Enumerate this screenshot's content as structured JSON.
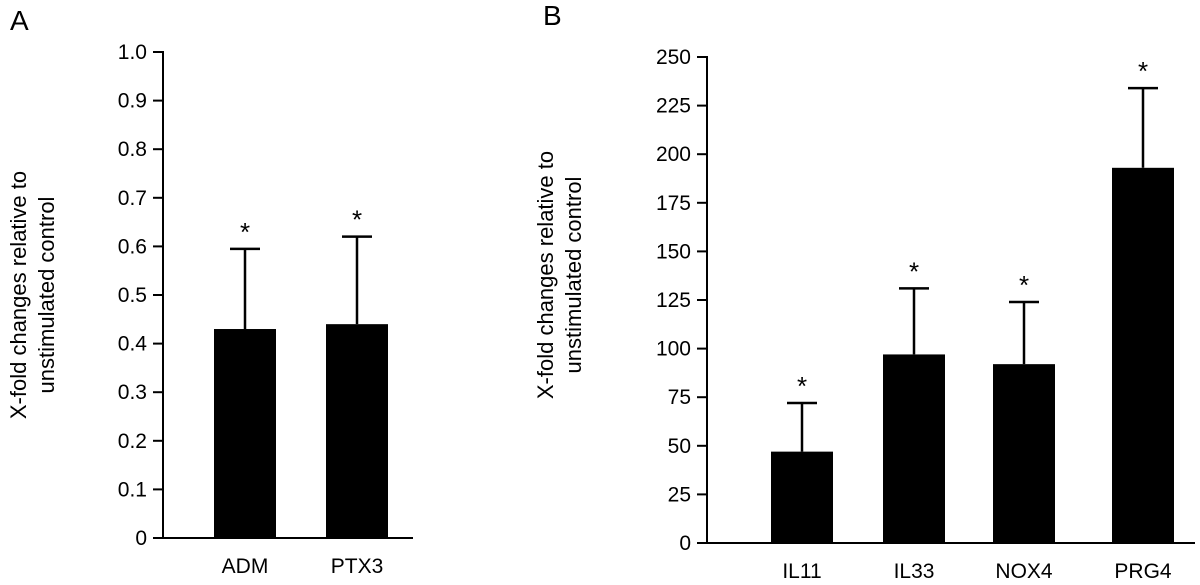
{
  "chart_data": [
    {
      "type": "bar",
      "panel_label": "A",
      "categories": [
        "ADM",
        "PTX3"
      ],
      "values": [
        0.43,
        0.44
      ],
      "error_upper": [
        0.595,
        0.62
      ],
      "annotations": [
        "*",
        "*"
      ],
      "ylabel_lines": [
        "X-fold changes relative to",
        "unstimulated control"
      ],
      "ylim": [
        0,
        1.0
      ],
      "yticks": [
        0,
        0.1,
        0.2,
        0.3,
        0.4,
        0.5,
        0.6,
        0.7,
        0.8,
        0.9,
        1.0
      ],
      "ytick_labels": [
        "0",
        "0.1",
        "0.2",
        "0.3",
        "0.4",
        "0.5",
        "0.6",
        "0.7",
        "0.8",
        "0.9",
        "1.0"
      ],
      "bar_color": "#000000",
      "grid": false
    },
    {
      "type": "bar",
      "panel_label": "B",
      "categories": [
        "IL11",
        "IL33",
        "NOX4",
        "PRG4"
      ],
      "values": [
        47,
        97,
        92,
        193
      ],
      "error_upper": [
        72,
        131,
        124,
        234
      ],
      "annotations": [
        "*",
        "*",
        "*",
        "*"
      ],
      "ylabel_lines": [
        "X-fold changes relative to",
        "unstimulated control"
      ],
      "ylim": [
        0,
        250
      ],
      "yticks": [
        0,
        25,
        50,
        75,
        100,
        125,
        150,
        175,
        200,
        225,
        250
      ],
      "ytick_labels": [
        "0",
        "25",
        "50",
        "75",
        "100",
        "125",
        "150",
        "175",
        "200",
        "225",
        "250"
      ],
      "bar_color": "#000000",
      "grid": false
    }
  ]
}
